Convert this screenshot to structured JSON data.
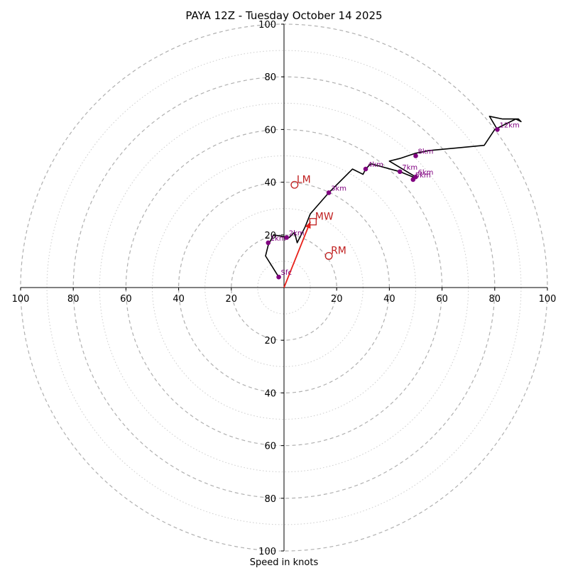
{
  "chart_data": {
    "type": "hodograph",
    "title": "PAYA 12Z - Tuesday October 14 2025",
    "xlabel": "Speed in knots",
    "range": [
      -100,
      100
    ],
    "major_rings": [
      20,
      40,
      60,
      80,
      100
    ],
    "minor_rings": [
      10,
      30,
      50,
      70,
      90
    ],
    "ticks": {
      "x_neg": [
        "100",
        "80",
        "60",
        "40",
        "20"
      ],
      "x_pos": [
        "20",
        "40",
        "60",
        "80",
        "100"
      ],
      "y_pos": [
        "20",
        "40",
        "60",
        "80",
        "100"
      ],
      "y_neg": [
        "20",
        "40",
        "60",
        "80",
        "100"
      ]
    },
    "x_neg_values": [
      -100,
      -80,
      -60,
      -40,
      -20
    ],
    "x_pos_values": [
      20,
      40,
      60,
      80,
      100
    ],
    "y_pos_values": [
      20,
      40,
      60,
      80,
      100
    ],
    "y_neg_values": [
      -20,
      -40,
      -60,
      -80,
      -100
    ],
    "trace": [
      [
        -2,
        4
      ],
      [
        -7,
        12
      ],
      [
        -6,
        16
      ],
      [
        -4,
        20
      ],
      [
        2,
        19
      ],
      [
        4,
        21
      ],
      [
        5,
        17
      ],
      [
        8,
        23
      ],
      [
        10,
        28
      ],
      [
        17,
        36
      ],
      [
        26,
        45
      ],
      [
        30,
        43
      ],
      [
        31,
        45
      ],
      [
        33,
        47
      ],
      [
        44,
        44
      ],
      [
        49,
        42
      ],
      [
        49,
        41
      ],
      [
        50,
        42
      ],
      [
        40,
        48
      ],
      [
        44,
        49
      ],
      [
        50,
        51
      ],
      [
        55,
        52
      ],
      [
        76,
        54
      ],
      [
        80,
        60
      ],
      [
        88,
        64
      ],
      [
        90,
        63
      ],
      [
        89,
        64
      ],
      [
        83,
        64
      ],
      [
        78,
        65
      ],
      [
        81,
        60
      ]
    ],
    "height_markers": [
      {
        "label": "Sfc",
        "x": -2,
        "y": 4
      },
      {
        "label": "1km",
        "x": -6,
        "y": 17
      },
      {
        "label": "2km",
        "x": 1,
        "y": 19
      },
      {
        "label": "3km",
        "x": 17,
        "y": 36
      },
      {
        "label": "4km",
        "x": 31,
        "y": 45
      },
      {
        "label": "5km",
        "x": 49,
        "y": 41
      },
      {
        "label": "6km",
        "x": 50,
        "y": 42
      },
      {
        "label": "7km",
        "x": 44,
        "y": 44
      },
      {
        "label": "8km",
        "x": 50,
        "y": 50
      },
      {
        "label": "12km",
        "x": 81,
        "y": 60
      }
    ],
    "motion_markers": [
      {
        "label": "LM",
        "x": 4,
        "y": 39,
        "shape": "circle"
      },
      {
        "label": "MW",
        "x": 11,
        "y": 25,
        "shape": "square"
      },
      {
        "label": "RM",
        "x": 17,
        "y": 12,
        "shape": "circle"
      }
    ],
    "mean_wind_vector": {
      "x": 10,
      "y": 25
    },
    "colors": {
      "trace": "#000000",
      "height_marker": "#800080",
      "motion": "#c02020",
      "vector": "#e8211a",
      "ring": "#b0b0b0",
      "minor_ring": "#cccccc",
      "axis": "#000000"
    }
  }
}
